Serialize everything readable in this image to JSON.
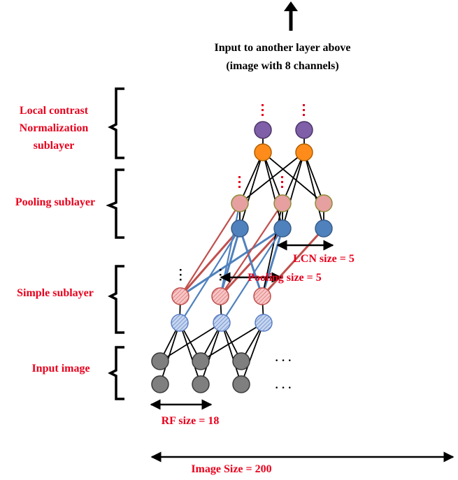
{
  "top_label": {
    "line1": "Input to another layer above",
    "line2": "(image with 8 channels)"
  },
  "sublayers": [
    {
      "key": "lcn",
      "lines": [
        "Local contrast",
        "Normalization",
        "sublayer"
      ]
    },
    {
      "key": "pool",
      "lines": [
        "Pooling sublayer"
      ]
    },
    {
      "key": "simple",
      "lines": [
        "Simple sublayer"
      ]
    },
    {
      "key": "input",
      "lines": [
        "Input image"
      ]
    }
  ],
  "annotations": {
    "lcn_size": "LCN size = 5",
    "pooling_size": "Pooling size = 5",
    "rf_size": "RF size = 18",
    "image_size": "Image Size = 200"
  },
  "ellipsis": "·  ·  ·",
  "node_colors": {
    "input": "#7f7f7f",
    "simple_blue": "#8eaadb",
    "simple_pink": "#f4b6b6",
    "pool_pink": "#e6a0a0",
    "pool_blue": "#4f81bd",
    "lcn_orange": "#ff8c1a",
    "lcn_purple": "#7f5fa8",
    "label_red": "#e8001c"
  }
}
